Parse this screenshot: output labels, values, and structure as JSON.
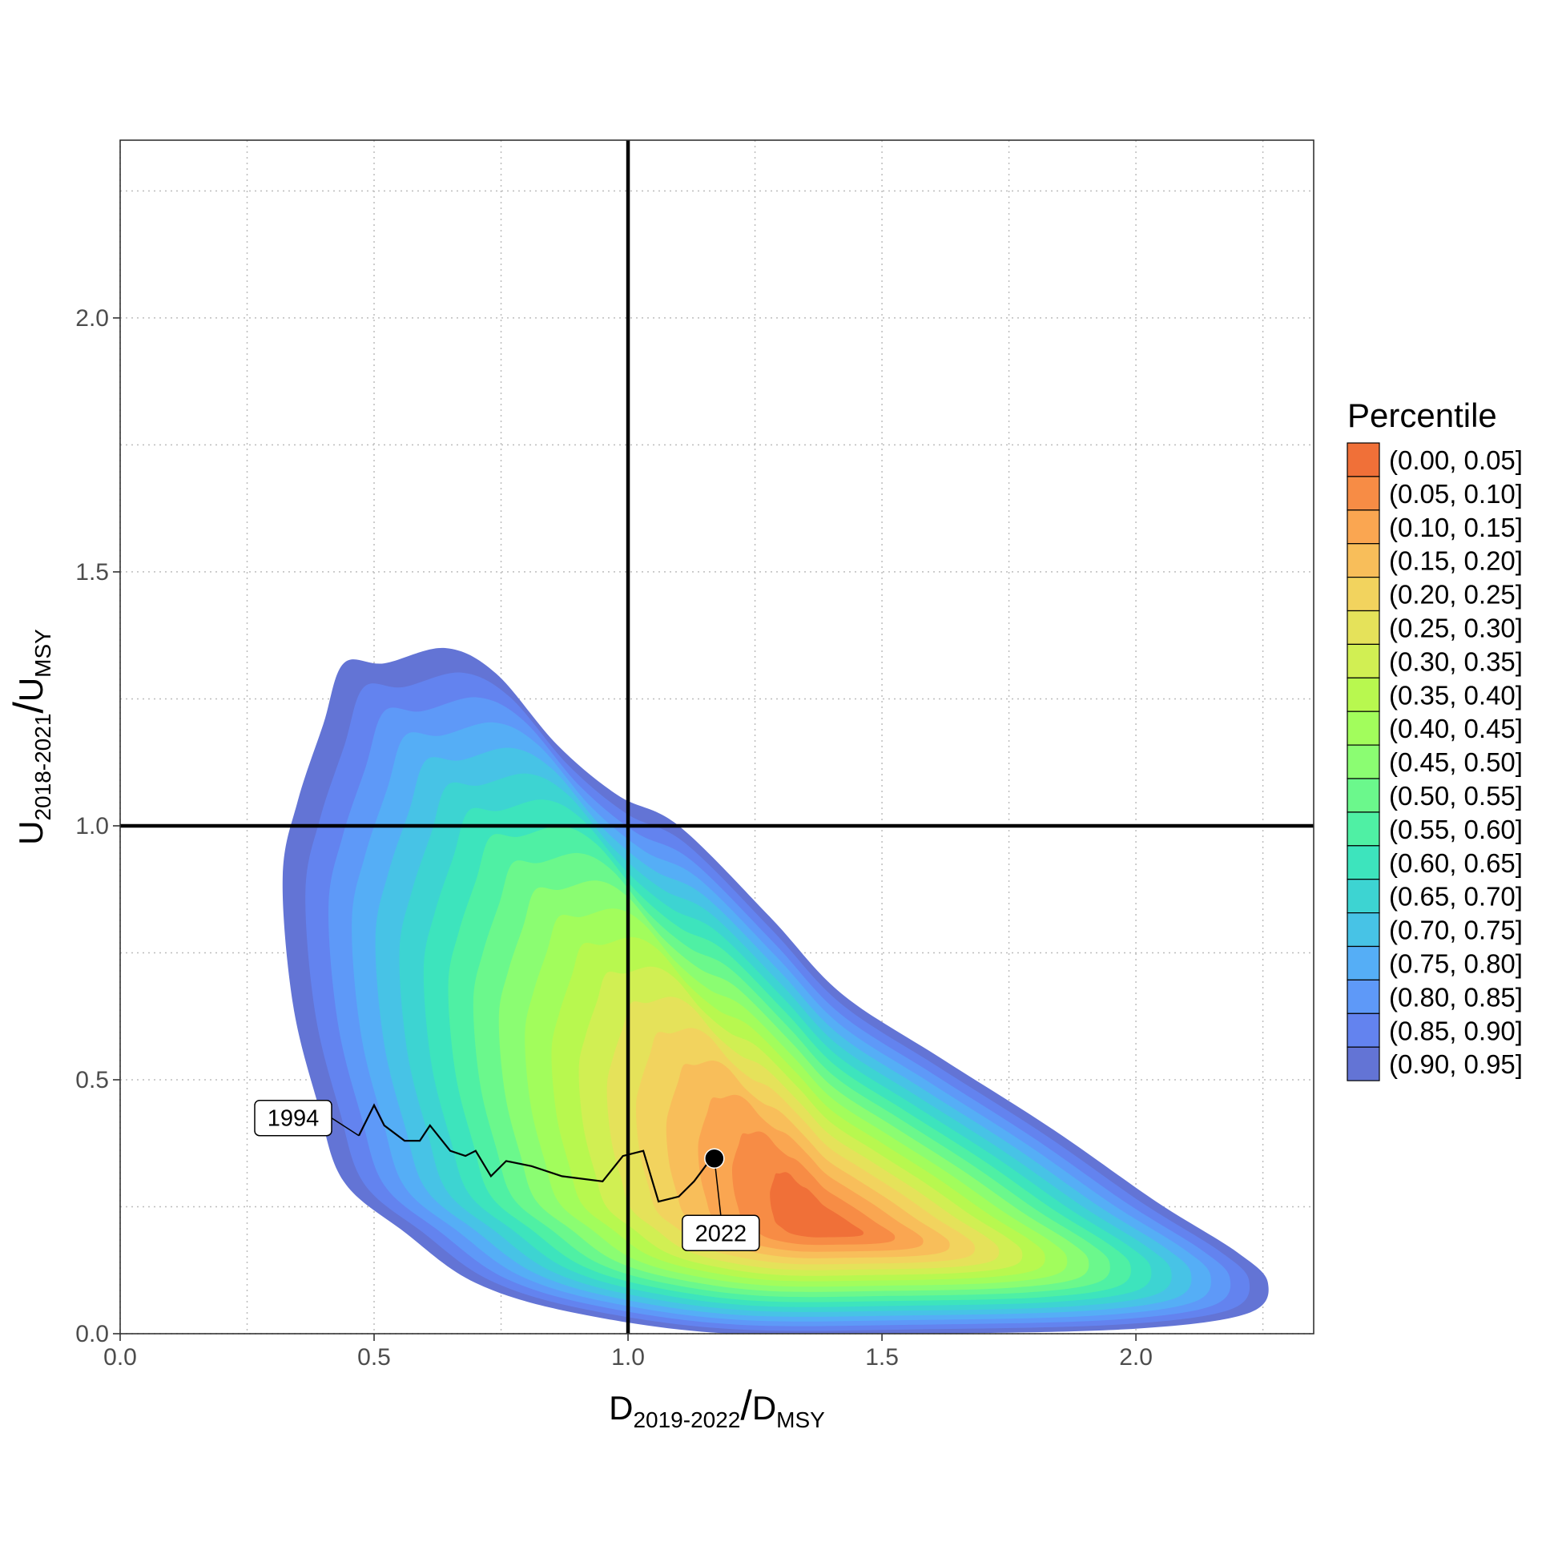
{
  "chart_data": {
    "type": "heatmap",
    "subtype": "kaplan-plot density contours",
    "xlabel": {
      "main": "D",
      "sub": "2019-2022",
      "sep": "/",
      "main2": "D",
      "sub2": "MSY"
    },
    "ylabel": {
      "main": "U",
      "sub": "2018-2021",
      "sep": "/",
      "main2": "U",
      "sub2": "MSY"
    },
    "xlim": [
      0,
      2.35
    ],
    "ylim": [
      0,
      2.35
    ],
    "xticks": [
      0.0,
      0.5,
      1.0,
      1.5,
      2.0
    ],
    "yticks": [
      0.0,
      0.5,
      1.0,
      1.5,
      2.0
    ],
    "xtick_labels": [
      "0.0",
      "0.5",
      "1.0",
      "1.5",
      "2.0"
    ],
    "ytick_labels": [
      "0.0",
      "0.5",
      "1.0",
      "1.5",
      "2.0"
    ],
    "grid": true,
    "reference_lines": {
      "x": 1.0,
      "y": 1.0
    },
    "legend": {
      "title": "Percentile",
      "position": "right",
      "entries": [
        {
          "label": "(0.00, 0.05]",
          "color": "#f07038"
        },
        {
          "label": "(0.05, 0.10]",
          "color": "#f78c45"
        },
        {
          "label": "(0.10, 0.15]",
          "color": "#faa651"
        },
        {
          "label": "(0.15, 0.20]",
          "color": "#f8be5a"
        },
        {
          "label": "(0.20, 0.25]",
          "color": "#f2d35e"
        },
        {
          "label": "(0.25, 0.30]",
          "color": "#e5e25a"
        },
        {
          "label": "(0.30, 0.35]",
          "color": "#d1ef53"
        },
        {
          "label": "(0.35, 0.40]",
          "color": "#b8f84f"
        },
        {
          "label": "(0.40, 0.45]",
          "color": "#a2fd5c"
        },
        {
          "label": "(0.45, 0.50]",
          "color": "#8bfd72"
        },
        {
          "label": "(0.50, 0.55]",
          "color": "#6bf88c"
        },
        {
          "label": "(0.55, 0.60]",
          "color": "#4ff0a4"
        },
        {
          "label": "(0.60, 0.65]",
          "color": "#3de4bd"
        },
        {
          "label": "(0.65, 0.70]",
          "color": "#3dd4d2"
        },
        {
          "label": "(0.70, 0.75]",
          "color": "#47c3e6"
        },
        {
          "label": "(0.75, 0.80]",
          "color": "#55aef6"
        },
        {
          "label": "(0.80, 0.85]",
          "color": "#5e99f8"
        },
        {
          "label": "(0.85, 0.90]",
          "color": "#6383ef"
        },
        {
          "label": "(0.90, 0.95]",
          "color": "#6374d5"
        }
      ]
    },
    "density": {
      "center": [
        1.38,
        0.21
      ],
      "outer_contour": [
        [
          0.44,
          1.32
        ],
        [
          0.52,
          1.32
        ],
        [
          0.64,
          1.35
        ],
        [
          0.74,
          1.3
        ],
        [
          0.86,
          1.16
        ],
        [
          0.98,
          1.06
        ],
        [
          1.1,
          1.0
        ],
        [
          1.28,
          0.82
        ],
        [
          1.42,
          0.67
        ],
        [
          1.62,
          0.54
        ],
        [
          1.84,
          0.4
        ],
        [
          2.04,
          0.26
        ],
        [
          2.2,
          0.16
        ],
        [
          2.26,
          0.1
        ],
        [
          2.22,
          0.04
        ],
        [
          2.0,
          0.01
        ],
        [
          1.6,
          0.0
        ],
        [
          1.2,
          0.0
        ],
        [
          0.9,
          0.04
        ],
        [
          0.7,
          0.1
        ],
        [
          0.56,
          0.2
        ],
        [
          0.44,
          0.3
        ],
        [
          0.39,
          0.45
        ],
        [
          0.34,
          0.65
        ],
        [
          0.32,
          0.9
        ],
        [
          0.35,
          1.05
        ],
        [
          0.4,
          1.2
        ]
      ]
    },
    "trajectory": {
      "x": [
        0.47,
        0.5,
        0.52,
        0.56,
        0.59,
        0.61,
        0.65,
        0.68,
        0.7,
        0.73,
        0.76,
        0.81,
        0.87,
        0.95,
        0.99,
        1.03,
        1.06,
        1.1,
        1.13,
        1.16,
        1.17
      ],
      "y": [
        0.39,
        0.45,
        0.41,
        0.38,
        0.38,
        0.41,
        0.36,
        0.35,
        0.36,
        0.31,
        0.34,
        0.33,
        0.31,
        0.3,
        0.35,
        0.36,
        0.26,
        0.27,
        0.3,
        0.34,
        0.34
      ],
      "start_label": "1994",
      "end_label": "2022",
      "end_point": [
        1.17,
        0.345
      ]
    }
  }
}
